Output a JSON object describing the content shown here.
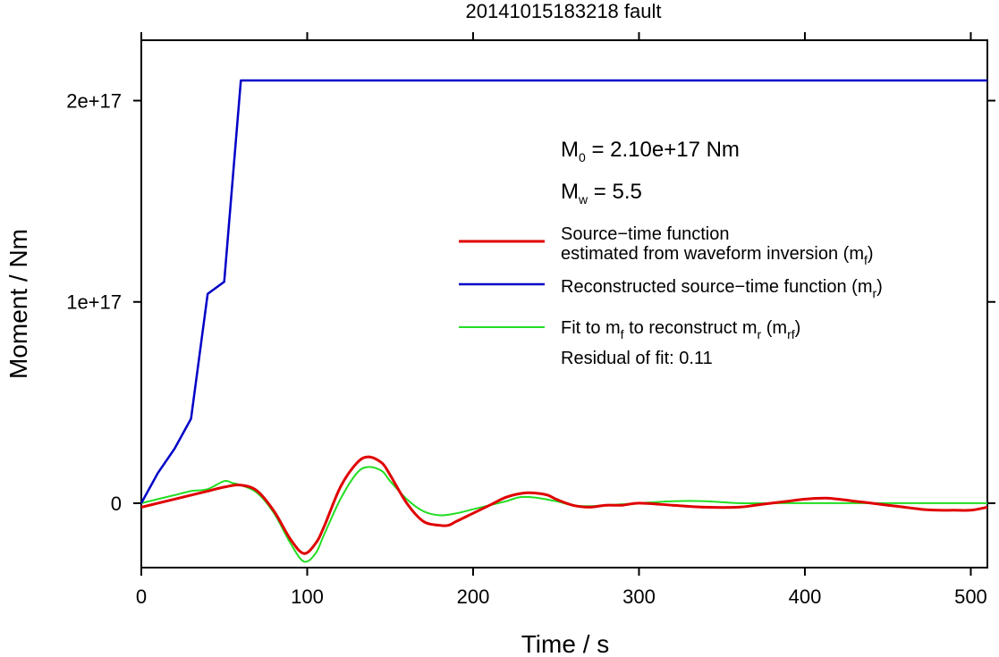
{
  "chart_data": {
    "type": "line",
    "title": "20141015183218 fault",
    "xlabel": "Time / s",
    "ylabel": "Moment / Nm",
    "xlim": [
      0,
      510
    ],
    "ylim": [
      -3.2e+16,
      2.3e+17
    ],
    "xticks": [
      0,
      100,
      200,
      300,
      400,
      500
    ],
    "xtick_labels": [
      "0",
      "100",
      "200",
      "300",
      "400",
      "500"
    ],
    "yticks": [
      0,
      1e+17,
      2e+17
    ],
    "ytick_labels": [
      "0",
      "1e+17",
      "2e+17"
    ],
    "grid": false,
    "legend_position": "right",
    "annotations": {
      "m0": {
        "main": "M",
        "sub": "0",
        "rest": " = 2.10e+17 Nm"
      },
      "mw": {
        "main": "M",
        "sub": "w",
        "rest": " = 5.5"
      },
      "residual": "Residual of fit: 0.11"
    },
    "series": [
      {
        "name": "Source−time function estimated from waveform inversion (mf)",
        "legend_lines": [
          {
            "text": "Source−time function"
          },
          {
            "text": "estimated from waveform inversion (m",
            "sub": "f",
            "after": ")"
          }
        ],
        "color": "#e00000",
        "x": [
          0,
          10,
          20,
          30,
          40,
          50,
          60,
          70,
          80,
          90,
          98,
          105,
          110,
          120,
          130,
          137,
          145,
          150,
          160,
          170,
          180,
          185,
          190,
          200,
          210,
          220,
          230,
          238,
          245,
          250,
          260,
          270,
          280,
          290,
          300,
          320,
          340,
          360,
          370,
          380,
          390,
          400,
          412,
          420,
          430,
          440,
          450,
          460,
          470,
          480,
          490,
          500,
          510
        ],
        "y": [
          -2000000000000000.0,
          0,
          2000000000000000.0,
          4000000000000000.0,
          6000000000000000.0,
          8000000000000000.0,
          9000000000000000.0,
          6000000000000000.0,
          -4000000000000000.0,
          -1.8e+16,
          -2.5e+16,
          -2e+16,
          -1.2e+16,
          8000000000000000.0,
          2e+16,
          2.3e+16,
          2e+16,
          1.4e+16,
          0,
          -9000000000000000.0,
          -1.1e+16,
          -1.1e+16,
          -9000000000000000.0,
          -5000000000000000.0,
          -1000000000000000.0,
          3000000000000000.0,
          5000000000000000.0,
          5000000000000000.0,
          4000000000000000.0,
          2000000000000000.0,
          -1000000000000000.0,
          -2000000000000000.0,
          -1000000000000000.0,
          -1000000000000000.0,
          0,
          -1000000000000000.0,
          -2000000000000000.0,
          -2000000000000000.0,
          -1000000000000000.0,
          0,
          1000000000000000.0,
          2000000000000000.0,
          2500000000000000.0,
          2000000000000000.0,
          1000000000000000.0,
          0,
          -1000000000000000.0,
          -2000000000000000.0,
          -3000000000000000.0,
          -3500000000000000.0,
          -3500000000000000.0,
          -3500000000000000.0,
          -2000000000000000.0
        ]
      },
      {
        "name": "Reconstructed source−time function (mr)",
        "legend_lines": [
          {
            "text": "Reconstructed source−time function (m",
            "sub": "r",
            "after": ")"
          }
        ],
        "color": "#0000c8",
        "x": [
          0,
          10,
          20,
          30,
          40,
          50,
          60,
          510
        ],
        "y": [
          0,
          1.5e+16,
          2.7e+16,
          4.2e+16,
          1.04e+17,
          1.1e+17,
          2.1e+17,
          2.1e+17
        ]
      },
      {
        "name": "Fit to mf to reconstruct mr (mrf)",
        "legend_lines": [
          {
            "text": "Fit to m",
            "sub": "f",
            "after": " to reconstruct m",
            "sub2": "r",
            "after2": " (m",
            "sub3": "rf",
            "after3": ")"
          }
        ],
        "color": "#22dd22",
        "x": [
          0,
          10,
          20,
          30,
          40,
          50,
          55,
          60,
          70,
          80,
          90,
          98,
          105,
          110,
          120,
          130,
          137,
          145,
          150,
          160,
          170,
          180,
          190,
          200,
          210,
          220,
          228,
          235,
          240,
          250,
          260,
          270,
          280,
          300,
          320,
          340,
          360,
          380,
          400,
          420,
          440,
          460,
          480,
          500,
          510
        ],
        "y": [
          0,
          2000000000000000.0,
          4000000000000000.0,
          6000000000000000.0,
          7000000000000000.0,
          1.1e+16,
          1e+16,
          9000000000000000.0,
          5000000000000000.0,
          -5000000000000000.0,
          -2e+16,
          -2.9e+16,
          -2.5e+16,
          -1.6e+16,
          2000000000000000.0,
          1.5e+16,
          1.8e+16,
          1.6e+16,
          1.1e+16,
          2000000000000000.0,
          -4000000000000000.0,
          -6000000000000000.0,
          -5000000000000000.0,
          -3000000000000000.0,
          -1000000000000000.0,
          1000000000000000.0,
          3000000000000000.0,
          3000000000000000.0,
          2500000000000000.0,
          1000000000000000.0,
          -1000000000000000.0,
          -1500000000000000.0,
          -1000000000000000.0,
          0,
          1000000000000000.0,
          1000000000000000.0,
          0,
          0,
          0,
          0,
          0,
          0,
          0,
          0,
          0
        ]
      }
    ]
  }
}
